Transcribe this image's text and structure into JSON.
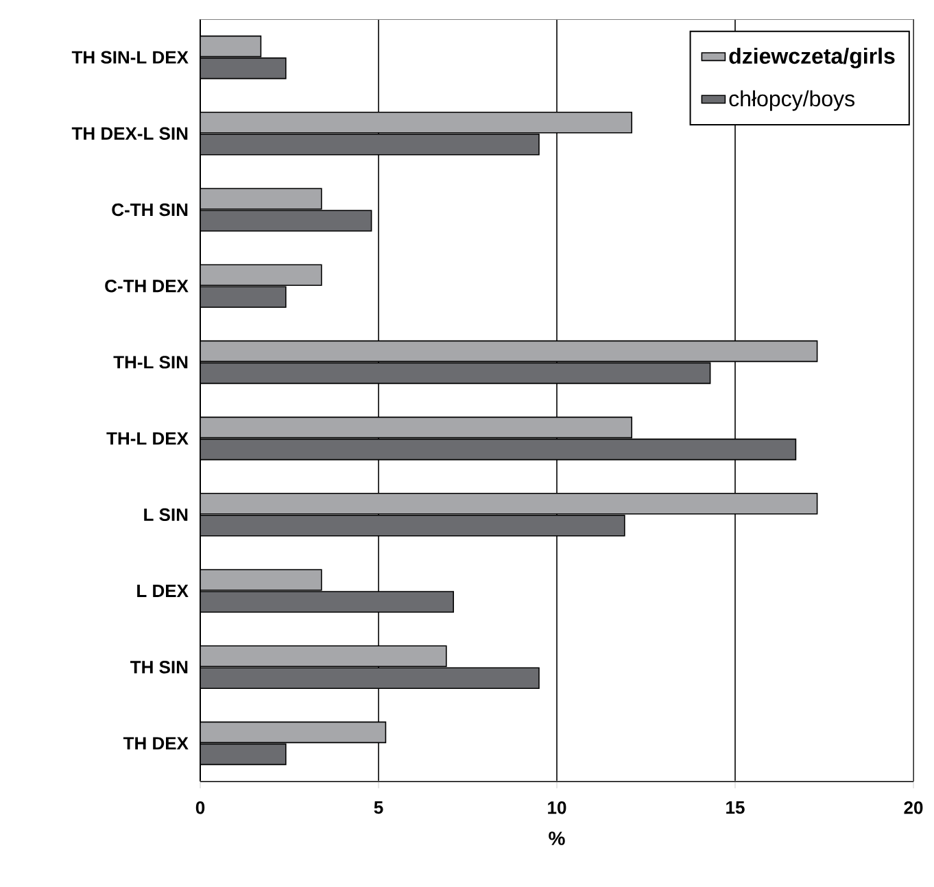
{
  "chart_data": {
    "type": "bar",
    "orientation": "horizontal",
    "xlabel": "%",
    "categories": [
      "TH SIN-L DEX",
      "TH DEX-L SIN",
      "C-TH SIN",
      "C-TH DEX",
      "TH-L SIN",
      "TH-L DEX",
      "L SIN",
      "L DEX",
      "TH SIN",
      "TH DEX"
    ],
    "series": [
      {
        "name": "dziewczeta/girls",
        "color": "#a6a7aa",
        "values": [
          1.7,
          12.1,
          3.4,
          3.4,
          17.3,
          12.1,
          17.3,
          3.4,
          6.9,
          5.2
        ]
      },
      {
        "name": "chłopcy/boys",
        "color": "#6b6c70",
        "values": [
          2.4,
          9.5,
          4.8,
          2.4,
          14.3,
          16.7,
          11.9,
          7.1,
          9.5,
          2.4
        ]
      }
    ],
    "xlim": [
      0,
      20
    ],
    "xticks": [
      0,
      5,
      10,
      15,
      20
    ],
    "grid": "x",
    "legend": "top right"
  }
}
